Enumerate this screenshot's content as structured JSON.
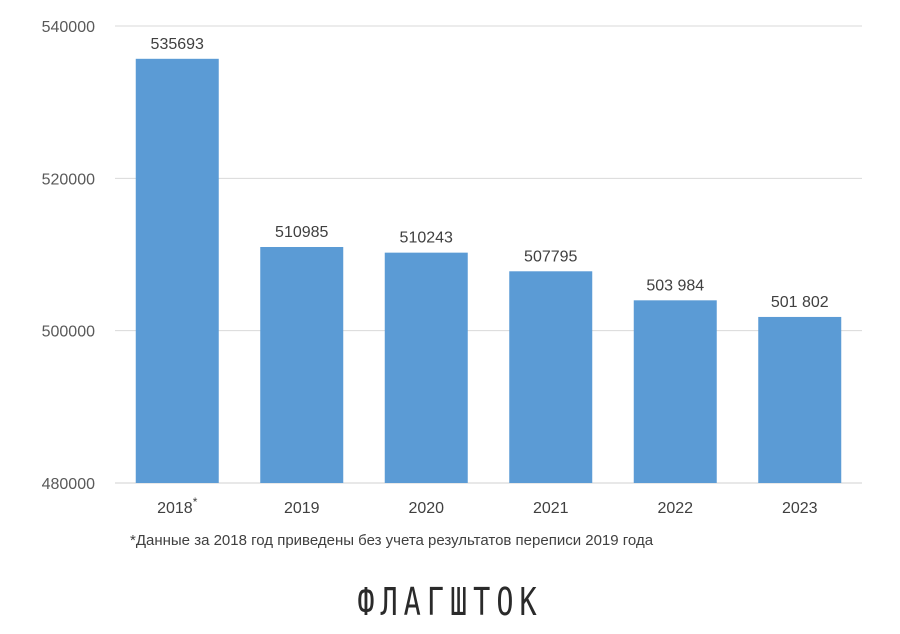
{
  "chart_data": {
    "type": "bar",
    "categories": [
      "2018",
      "2019",
      "2020",
      "2021",
      "2022",
      "2023"
    ],
    "category_marks": [
      "*",
      "",
      "",
      "",
      "",
      ""
    ],
    "values": [
      535693,
      510985,
      510243,
      507795,
      503984,
      501802
    ],
    "data_labels": [
      "535693",
      "510985",
      "510243",
      "507795",
      "503 984",
      "501 802"
    ],
    "yticks": [
      480000,
      500000,
      520000,
      540000
    ],
    "ylim": [
      480000,
      540000
    ],
    "grid": true,
    "bar_color": "#5b9bd5"
  },
  "footnote": "*Данные за 2018 год приведены без учета результатов переписи 2019 года",
  "logo_text": "ФЛАГШТОК"
}
